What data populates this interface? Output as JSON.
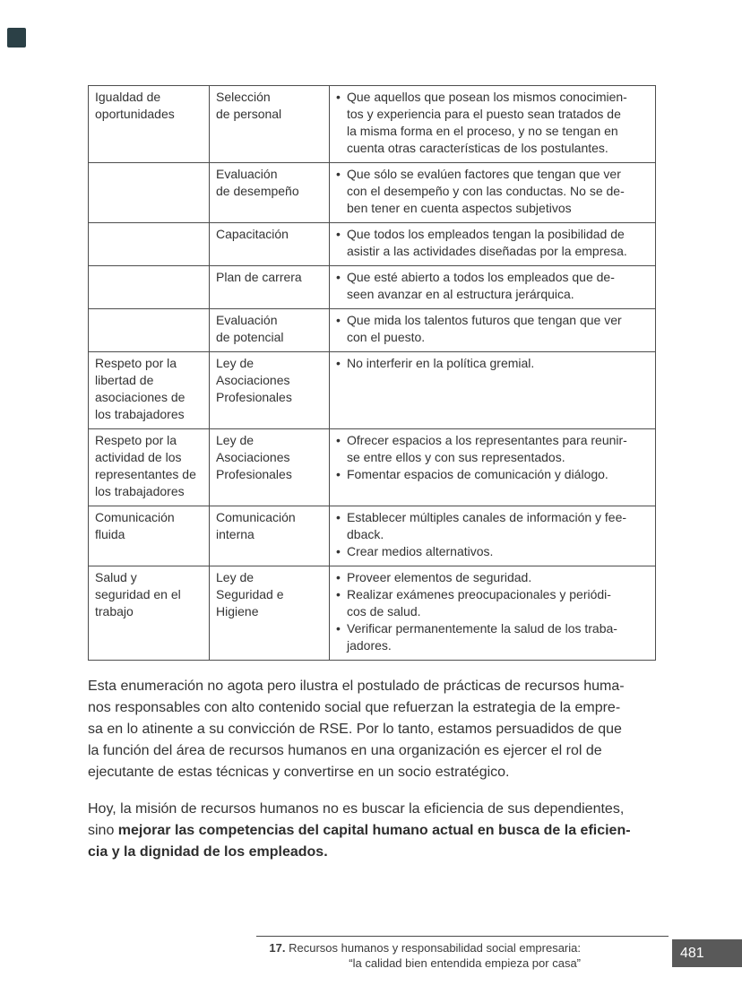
{
  "page": {
    "background": "#ffffff",
    "text_color": "#333333",
    "corner_mark_color": "#2b4046"
  },
  "table": {
    "bullet_char": "•",
    "border_color": "#4d4d4d",
    "rows": [
      {
        "practice": "Igualdad de\noportunidades",
        "tool": "Selección\nde personal",
        "bullets": [
          "Que aquellos que posean los mismos conocimien-\ntos y experiencia para el puesto sean tratados de\nla misma forma en el proceso, y no se tengan en\ncuenta otras características de los postulantes."
        ]
      },
      {
        "practice": "",
        "tool": "Evaluación\nde desempeño",
        "bullets": [
          "Que sólo se evalúen factores que tengan que ver\ncon el desempeño y con las conductas. No se de-\nben tener en cuenta aspectos subjetivos"
        ]
      },
      {
        "practice": "",
        "tool": "Capacitación",
        "bullets": [
          "Que todos los empleados tengan la posibilidad de\nasistir a las actividades diseñadas por la empresa."
        ]
      },
      {
        "practice": "",
        "tool": "Plan de carrera",
        "bullets": [
          "Que esté abierto a todos los empleados que de-\nseen avanzar en al estructura jerárquica."
        ]
      },
      {
        "practice": "",
        "tool": "Evaluación\nde potencial",
        "bullets": [
          "Que mida los talentos futuros que tengan que ver\ncon el puesto."
        ]
      },
      {
        "practice": "Respeto por la\nlibertad de\nasociaciones de\nlos trabajadores",
        "tool": "Ley de\nAsociaciones\nProfesionales",
        "bullets": [
          "No interferir en la política gremial."
        ]
      },
      {
        "practice": "Respeto por la\nactividad de los\nrepresentantes de\nlos trabajadores",
        "tool": "Ley de\nAsociaciones\nProfesionales",
        "bullets": [
          "Ofrecer espacios a los representantes para reunir-\nse entre ellos y con sus representados.",
          "Fomentar espacios de comunicación y diálogo."
        ]
      },
      {
        "practice": "Comunicación\nfluida",
        "tool": "Comunicación\ninterna",
        "bullets": [
          "Establecer múltiples canales de información y fee-\ndback.",
          "Crear medios alternativos."
        ]
      },
      {
        "practice": "Salud y\nseguridad en el\ntrabajo",
        "tool": "Ley de\nSeguridad e\nHigiene",
        "bullets": [
          "Proveer elementos de seguridad.",
          "Realizar exámenes preocupacionales y periódi-\ncos de salud.",
          "Verificar permanentemente la salud de los traba-\njadores."
        ]
      }
    ]
  },
  "paragraphs": {
    "p1": "Esta enumeración no agota pero ilustra el postulado de prácticas de recursos huma-\nnos responsables con alto contenido social que refuerzan la estrategia de la empre-\nsa en lo atinente a su convicción de RSE. Por lo tanto, estamos persuadidos de que\nla función del área de recursos humanos en una organización es ejercer el rol de\nejecutante de estas técnicas y convertirse en un socio estratégico.",
    "p2_normal": "Hoy, la misión de recursos humanos no es buscar la eficiencia de sus dependientes,\nsino ",
    "p2_bold": "mejorar las competencias del capital humano actual en busca de la eficien-\ncia y la dignidad de los empleados."
  },
  "footer": {
    "chapter_number": "17.",
    "reference_line1": " Recursos humanos y responsabilidad social empresaria:",
    "reference_line2": "“la calidad bien entendida empieza por casa”",
    "page_number": "481",
    "badge_color": "#595959"
  }
}
